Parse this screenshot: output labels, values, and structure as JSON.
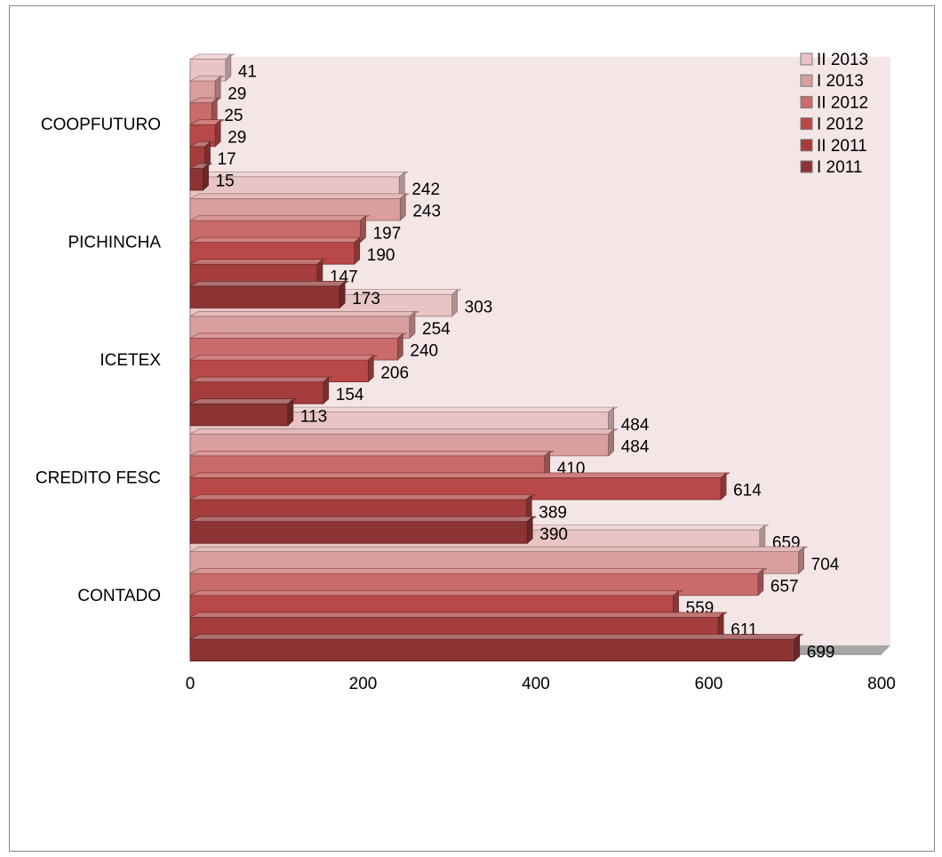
{
  "chart_data": {
    "type": "bar",
    "orientation": "horizontal",
    "style": "3d",
    "categories": [
      "CONTADO",
      "CREDITO FESC",
      "ICETEX",
      "PICHINCHA",
      "COOPFUTURO"
    ],
    "series": [
      {
        "name": "I 2011",
        "color": "#8c3434",
        "values": [
          699,
          390,
          113,
          173,
          15
        ]
      },
      {
        "name": "II 2011",
        "color": "#a53d3d",
        "values": [
          611,
          389,
          154,
          147,
          17
        ]
      },
      {
        "name": "I 2012",
        "color": "#b94848",
        "values": [
          559,
          614,
          206,
          190,
          29
        ]
      },
      {
        "name": "II 2012",
        "color": "#c96b6b",
        "values": [
          657,
          410,
          240,
          197,
          25
        ]
      },
      {
        "name": "I 2013",
        "color": "#d99e9e",
        "values": [
          704,
          484,
          254,
          243,
          29
        ]
      },
      {
        "name": "II 2013",
        "color": "#e8c4c4",
        "values": [
          659,
          484,
          303,
          242,
          41
        ]
      }
    ],
    "legend_order": [
      "II 2013",
      "I 2013",
      "II 2012",
      "I 2012",
      "II 2011",
      "I 2011"
    ],
    "xlim": [
      0,
      800
    ],
    "xticks": [
      "0",
      "200",
      "400",
      "600",
      "800"
    ],
    "title": "",
    "xlabel": "",
    "ylabel": "",
    "data_labels": true,
    "grid": false,
    "legend_position": "top-right",
    "back_wall_color": "#f4e6e6",
    "floor_color": "#a6a6a6"
  }
}
